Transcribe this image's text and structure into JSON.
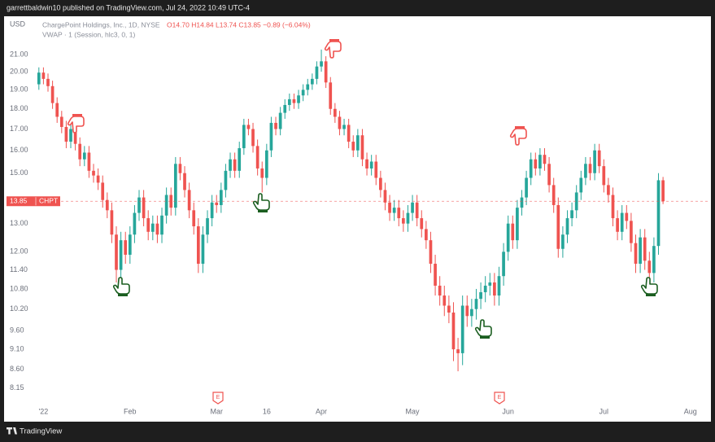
{
  "chart_data": {
    "type": "candlestick",
    "published": "garrettbaldwin10 published on TradingView.com, Jul 24, 2022 10:49 UTC-4",
    "title": "ChargePoint Holdings, Inc., 1D, NYSE",
    "ohlc_legend": "O14.70 H14.84 L13.74 C13.85 −0.89 (−6.04%)",
    "indicator": "VWAP · 1 (Session, hlc3, 0, 1)",
    "y_unit": "USD",
    "symbol": "CHPT",
    "brand": "TradingView",
    "earnings_label": "E",
    "up_color": "#26a69a",
    "down_color": "#ef5350",
    "log_scale": true,
    "xlim": [
      -0.5,
      146.8
    ],
    "xticks": [
      {
        "value": 1,
        "label": "'22"
      },
      {
        "value": 20,
        "label": "Feb"
      },
      {
        "value": 39,
        "label": "Mar"
      },
      {
        "value": 50,
        "label": "16"
      },
      {
        "value": 62,
        "label": "Apr"
      },
      {
        "value": 82,
        "label": "May"
      },
      {
        "value": 103,
        "label": "Jun"
      },
      {
        "value": 124,
        "label": "Jul"
      },
      {
        "value": 143,
        "label": "Aug"
      }
    ],
    "ylim": [
      7.87,
      23.3
    ],
    "yticks": [
      {
        "value": 21,
        "label": "21.00"
      },
      {
        "value": 20,
        "label": "20.00"
      },
      {
        "value": 19,
        "label": "19.00"
      },
      {
        "value": 18,
        "label": "18.00"
      },
      {
        "value": 17,
        "label": "17.00"
      },
      {
        "value": 16,
        "label": "16.00"
      },
      {
        "value": 15,
        "label": "15.00"
      },
      {
        "value": 13,
        "label": "13.00"
      },
      {
        "value": 12,
        "label": "12.00"
      },
      {
        "value": 11.4,
        "label": "11.40"
      },
      {
        "value": 10.8,
        "label": "10.80"
      },
      {
        "value": 10.2,
        "label": "10.20"
      },
      {
        "value": 9.6,
        "label": "9.60"
      },
      {
        "value": 9.1,
        "label": "9.10"
      },
      {
        "value": 8.6,
        "label": "8.60"
      },
      {
        "value": 8.15,
        "label": "8.15"
      }
    ],
    "open": [
      19.3,
      19.95,
      19.6,
      19.2,
      18.3,
      17.6,
      17.1,
      16.4,
      17.0,
      16.3,
      15.6,
      15.9,
      15.1,
      14.9,
      14.6,
      13.9,
      13.5,
      12.6,
      11.4,
      12.4,
      11.9,
      12.6,
      13.4,
      14.0,
      13.2,
      12.7,
      13.0,
      12.6,
      13.3,
      14.1,
      13.6,
      15.4,
      15.0,
      14.3,
      13.5,
      12.9,
      11.6,
      12.6,
      13.2,
      13.8,
      13.7,
      14.3,
      15.1,
      15.6,
      15.1,
      16.1,
      17.2,
      17.0,
      16.2,
      15.2,
      14.8,
      16.0,
      17.3,
      17.0,
      17.8,
      18.2,
      18.5,
      18.3,
      18.7,
      19.0,
      19.3,
      19.6,
      20.3,
      20.6,
      19.4,
      18.0,
      17.6,
      17.0,
      17.2,
      16.4,
      16.0,
      16.7,
      15.6,
      15.2,
      15.5,
      14.8,
      14.3,
      13.8,
      13.4,
      13.6,
      13.2,
      13.0,
      13.4,
      13.8,
      13.2,
      12.8,
      12.4,
      11.6,
      10.9,
      10.6,
      10.3,
      10.1,
      9.1,
      9.0,
      10.3,
      10.0,
      10.2,
      10.5,
      10.7,
      10.9,
      11.0,
      10.6,
      11.2,
      12.0,
      13.0,
      12.4,
      13.6,
      14.0,
      14.8,
      15.6,
      15.2,
      15.8,
      15.4,
      14.5,
      13.7,
      12.1,
      12.6,
      13.2,
      13.5,
      14.2,
      14.8,
      15.4,
      15.0,
      16.0,
      15.3,
      14.5,
      14.1,
      13.2,
      12.7,
      13.4,
      13.1,
      12.3,
      11.6,
      12.5,
      11.7,
      11.3,
      12.2,
      14.7
    ],
    "high": [
      20.25,
      20.25,
      19.9,
      19.5,
      18.6,
      17.9,
      17.4,
      17.3,
      17.3,
      16.6,
      16.2,
      16.2,
      15.4,
      15.2,
      14.9,
      14.2,
      13.8,
      12.9,
      12.7,
      12.7,
      12.9,
      13.7,
      14.3,
      14.3,
      13.5,
      13.3,
      13.3,
      13.6,
      14.4,
      14.4,
      15.7,
      15.7,
      15.3,
      14.6,
      13.8,
      13.2,
      12.9,
      13.5,
      14.1,
      14.1,
      14.6,
      15.4,
      15.9,
      15.9,
      16.4,
      17.5,
      17.5,
      17.3,
      16.5,
      15.5,
      16.3,
      17.6,
      17.6,
      18.1,
      18.5,
      18.8,
      18.8,
      19.0,
      19.3,
      19.6,
      19.9,
      20.6,
      21.3,
      20.9,
      19.7,
      18.3,
      17.9,
      17.5,
      17.5,
      16.7,
      17.0,
      17.0,
      15.9,
      15.8,
      15.8,
      15.1,
      14.6,
      14.1,
      13.9,
      13.9,
      13.5,
      13.7,
      14.1,
      14.1,
      13.5,
      13.1,
      12.7,
      11.9,
      11.2,
      10.9,
      10.6,
      10.4,
      9.4,
      10.6,
      10.6,
      10.5,
      10.8,
      11.0,
      11.2,
      11.3,
      11.3,
      11.5,
      12.3,
      13.3,
      13.3,
      13.9,
      14.3,
      15.1,
      15.9,
      15.9,
      16.1,
      16.1,
      15.7,
      14.8,
      14.0,
      12.9,
      13.5,
      13.8,
      14.5,
      15.1,
      15.7,
      15.7,
      16.3,
      16.3,
      15.6,
      14.8,
      14.4,
      13.5,
      13.7,
      13.7,
      13.4,
      12.6,
      12.8,
      12.8,
      12.0,
      12.5,
      15.0,
      14.84
    ],
    "low": [
      19.0,
      19.3,
      18.9,
      18.0,
      17.3,
      16.8,
      16.1,
      16.1,
      16.0,
      15.3,
      15.3,
      14.8,
      14.6,
      14.3,
      13.6,
      13.2,
      12.3,
      11.0,
      11.1,
      11.6,
      11.6,
      12.3,
      13.1,
      12.9,
      12.4,
      12.4,
      12.3,
      12.3,
      13.0,
      13.3,
      13.3,
      14.7,
      14.0,
      13.2,
      12.6,
      11.3,
      11.3,
      12.3,
      12.9,
      13.4,
      13.4,
      14.0,
      14.8,
      14.8,
      14.8,
      15.8,
      16.7,
      15.9,
      14.9,
      14.2,
      14.5,
      15.7,
      16.7,
      16.7,
      17.5,
      17.9,
      18.0,
      18.0,
      18.4,
      18.7,
      19.0,
      19.3,
      20.0,
      19.1,
      17.7,
      17.3,
      16.7,
      16.7,
      16.1,
      15.7,
      15.7,
      15.3,
      14.9,
      14.9,
      14.5,
      14.0,
      13.5,
      13.1,
      13.1,
      12.9,
      12.7,
      12.7,
      13.1,
      12.9,
      12.5,
      12.1,
      11.3,
      10.6,
      10.3,
      10.0,
      9.8,
      8.8,
      8.55,
      8.7,
      9.7,
      9.7,
      9.9,
      10.2,
      10.4,
      10.6,
      10.3,
      10.3,
      10.9,
      11.7,
      12.1,
      12.1,
      13.3,
      13.7,
      14.5,
      14.9,
      14.9,
      15.1,
      14.2,
      13.4,
      11.8,
      11.8,
      12.3,
      12.9,
      13.2,
      13.9,
      14.5,
      14.7,
      14.7,
      15.0,
      14.2,
      13.8,
      12.9,
      12.4,
      12.4,
      12.8,
      12.0,
      11.3,
      11.3,
      11.4,
      11.0,
      11.0,
      11.9,
      13.74
    ],
    "close": [
      19.95,
      19.6,
      19.2,
      18.3,
      17.6,
      17.1,
      16.4,
      17.0,
      16.3,
      15.6,
      15.9,
      15.1,
      14.9,
      14.6,
      13.9,
      13.5,
      12.6,
      11.4,
      12.4,
      11.9,
      12.6,
      13.4,
      14.0,
      13.2,
      12.7,
      13.0,
      12.6,
      13.3,
      14.1,
      13.6,
      15.4,
      15.0,
      14.3,
      13.5,
      12.9,
      11.6,
      12.6,
      13.2,
      13.8,
      13.7,
      14.3,
      15.1,
      15.6,
      15.1,
      16.1,
      17.2,
      17.0,
      16.2,
      15.2,
      14.8,
      16.0,
      17.3,
      17.0,
      17.8,
      18.2,
      18.5,
      18.3,
      18.7,
      19.0,
      19.3,
      19.6,
      20.3,
      20.6,
      19.4,
      18.0,
      17.6,
      17.0,
      17.2,
      16.4,
      16.0,
      16.7,
      15.6,
      15.2,
      15.5,
      14.8,
      14.3,
      13.8,
      13.4,
      13.6,
      13.2,
      13.0,
      13.4,
      13.8,
      13.2,
      12.8,
      12.4,
      11.6,
      10.9,
      10.6,
      10.3,
      10.1,
      9.1,
      9.0,
      10.3,
      10.0,
      10.2,
      10.5,
      10.7,
      10.9,
      11.0,
      10.6,
      11.2,
      12.0,
      13.0,
      12.4,
      13.6,
      14.0,
      14.8,
      15.6,
      15.2,
      15.8,
      15.4,
      14.5,
      13.7,
      12.1,
      12.6,
      13.2,
      13.5,
      14.2,
      14.8,
      15.4,
      15.0,
      16.0,
      15.3,
      14.5,
      14.1,
      13.2,
      12.7,
      13.4,
      13.1,
      12.3,
      11.6,
      12.5,
      11.7,
      11.3,
      12.2,
      14.7,
      13.85
    ]
  }
}
